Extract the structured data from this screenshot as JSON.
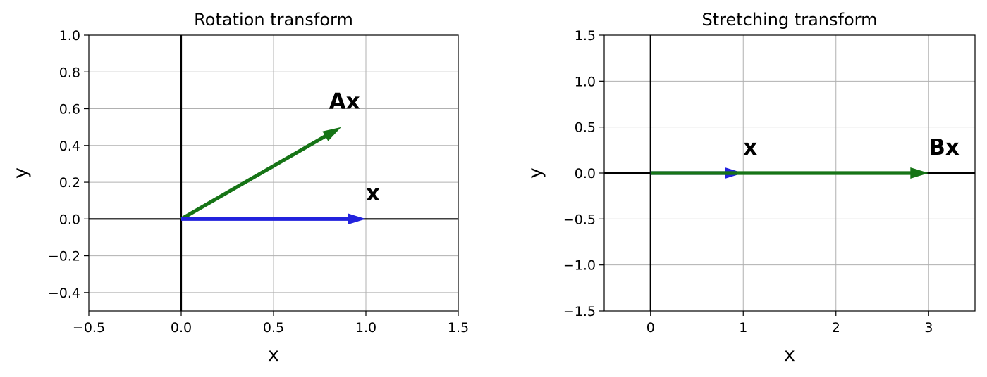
{
  "chart_data": [
    {
      "type": "quiver",
      "title": "Rotation transform",
      "xlabel": "x",
      "ylabel": "y",
      "xlim": [
        -0.5,
        1.5
      ],
      "ylim": [
        -0.5,
        1.0
      ],
      "xticks": [
        -0.5,
        0.0,
        0.5,
        1.0,
        1.5
      ],
      "xtick_labels": [
        "−0.5",
        "0.0",
        "0.5",
        "1.0",
        "1.5"
      ],
      "yticks": [
        -0.4,
        -0.2,
        0.0,
        0.2,
        0.4,
        0.6,
        0.8,
        1.0
      ],
      "ytick_labels": [
        "−0.4",
        "−0.2",
        "0.0",
        "0.2",
        "0.4",
        "0.6",
        "0.8",
        "1.0"
      ],
      "grid": true,
      "vectors": [
        {
          "label": "Ax",
          "x0": 0,
          "y0": 0,
          "x1": 0.866,
          "y1": 0.5,
          "color": "#167416",
          "label_x": 0.8,
          "label_y": 0.6
        },
        {
          "label": "x",
          "x0": 0,
          "y0": 0,
          "x1": 1.0,
          "y1": 0.0,
          "color": "#2222dd",
          "label_x": 1.0,
          "label_y": 0.1
        }
      ]
    },
    {
      "type": "quiver",
      "title": "Stretching transform",
      "xlabel": "x",
      "ylabel": "y",
      "xlim": [
        -0.5,
        3.5
      ],
      "ylim": [
        -1.5,
        1.5
      ],
      "xticks": [
        0,
        1,
        2,
        3
      ],
      "xtick_labels": [
        "0",
        "1",
        "2",
        "3"
      ],
      "yticks": [
        -1.5,
        -1.0,
        -0.5,
        0.0,
        0.5,
        1.0,
        1.5
      ],
      "ytick_labels": [
        "−1.5",
        "−1.0",
        "−0.5",
        "0.0",
        "0.5",
        "1.0",
        "1.5"
      ],
      "grid": true,
      "vectors": [
        {
          "label": "x",
          "x0": 0,
          "y0": 0,
          "x1": 1.0,
          "y1": 0.0,
          "color": "#2222dd",
          "label_x": 1.0,
          "label_y": 0.2
        },
        {
          "label": "Bx",
          "x0": 0,
          "y0": 0,
          "x1": 3.0,
          "y1": 0.0,
          "color": "#167416",
          "label_x": 3.0,
          "label_y": 0.2
        }
      ]
    }
  ]
}
